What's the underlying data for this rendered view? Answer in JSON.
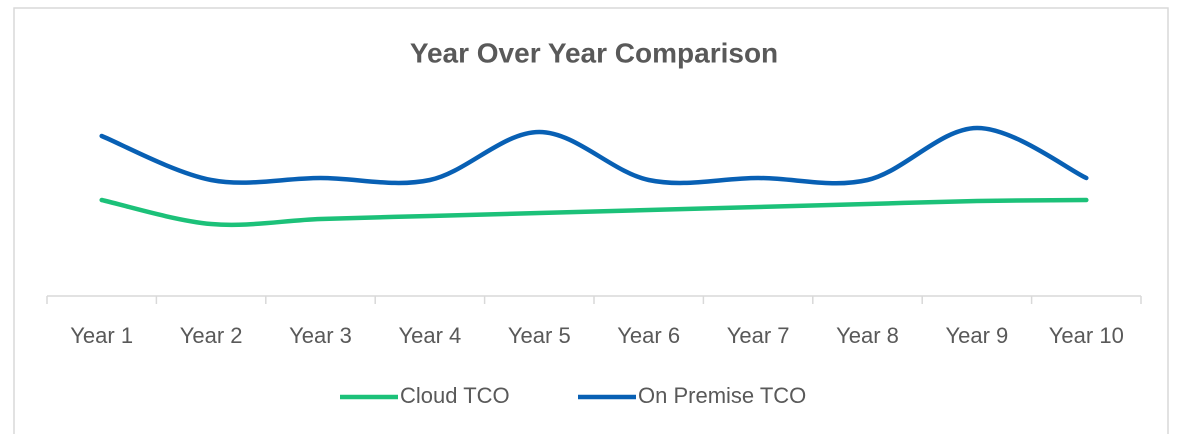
{
  "chart_data": {
    "type": "line",
    "title": "Year Over Year Comparison",
    "categories": [
      "Year 1",
      "Year 2",
      "Year 3",
      "Year 4",
      "Year 5",
      "Year 6",
      "Year 7",
      "Year 8",
      "Year 9",
      "Year 10"
    ],
    "series": [
      {
        "name": "Cloud TCO",
        "color": "#1cc179",
        "values": [
          48,
          36,
          38.5,
          40,
          41.5,
          43,
          44.5,
          46,
          47.5,
          48
        ]
      },
      {
        "name": "On Premise TCO",
        "color": "#0860b4",
        "values": [
          80,
          58,
          59,
          58,
          82,
          58,
          59,
          58,
          84,
          59
        ]
      }
    ],
    "ylim": [
      0,
      100
    ],
    "smooth": true,
    "legend": "bottom"
  }
}
